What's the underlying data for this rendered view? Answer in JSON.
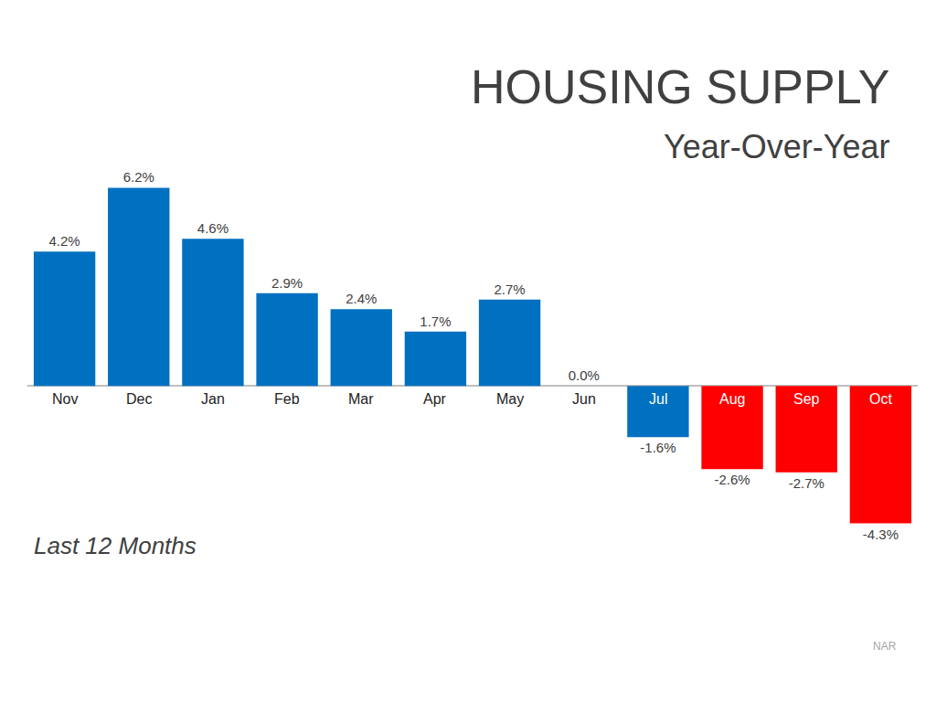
{
  "chart_data": {
    "type": "bar",
    "title": "HOUSING SUPPLY",
    "subtitle": "Year-Over-Year",
    "categories": [
      "Nov",
      "Dec",
      "Jan",
      "Feb",
      "Mar",
      "Apr",
      "May",
      "Jun",
      "Jul",
      "Aug",
      "Sep",
      "Oct"
    ],
    "values": [
      4.2,
      6.2,
      4.6,
      2.9,
      2.4,
      1.7,
      2.7,
      0.0,
      -1.6,
      -2.6,
      -2.7,
      -4.3
    ],
    "value_labels": [
      "4.2%",
      "6.2%",
      "4.6%",
      "2.9%",
      "2.4%",
      "1.7%",
      "2.7%",
      "0.0%",
      "-1.6%",
      "-2.6%",
      "-2.7%",
      "-4.3%"
    ],
    "colors": [
      "#0070c0",
      "#0070c0",
      "#0070c0",
      "#0070c0",
      "#0070c0",
      "#0070c0",
      "#0070c0",
      "#0070c0",
      "#0070c0",
      "#ff0000",
      "#ff0000",
      "#ff0000"
    ],
    "data_labels": true,
    "tick_labels": "x",
    "grid": false,
    "annotations": [
      "Last 12 Months",
      "NAR"
    ]
  }
}
